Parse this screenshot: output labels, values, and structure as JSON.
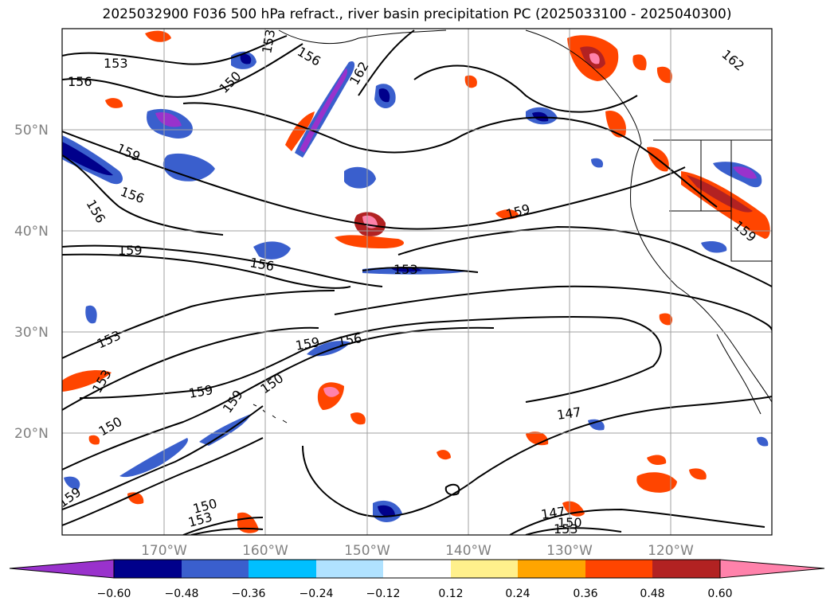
{
  "title": "2025032900 F036 500 hPa refract., river basin precipitation PC (2025033100 - 2025040300)",
  "map": {
    "lat_labels": [
      "50°N",
      "40°N",
      "30°N",
      "20°N"
    ],
    "lon_labels": [
      "170°W",
      "160°W",
      "150°W",
      "140°W",
      "130°W",
      "120°W"
    ],
    "contour_labels": [
      "153",
      "156",
      "159",
      "156",
      "162",
      "162",
      "159",
      "156",
      "159",
      "156",
      "153",
      "153",
      "159",
      "156",
      "159",
      "153",
      "150",
      "159",
      "150",
      "150",
      "147",
      "150",
      "153",
      "147",
      "153",
      "159",
      "156",
      "153",
      "150",
      "159"
    ]
  },
  "colorbar": {
    "colors": [
      "#9932cc",
      "#00008b",
      "#3a5fcd",
      "#00bfff",
      "#b0e2ff",
      "#ffffff",
      "#fff08c",
      "#ffa500",
      "#ff4500",
      "#b22222",
      "#ff82ab"
    ],
    "ticks": [
      "−0.60",
      "−0.48",
      "−0.36",
      "−0.24",
      "−0.12",
      "0.12",
      "0.24",
      "0.36",
      "0.48",
      "0.60"
    ]
  }
}
